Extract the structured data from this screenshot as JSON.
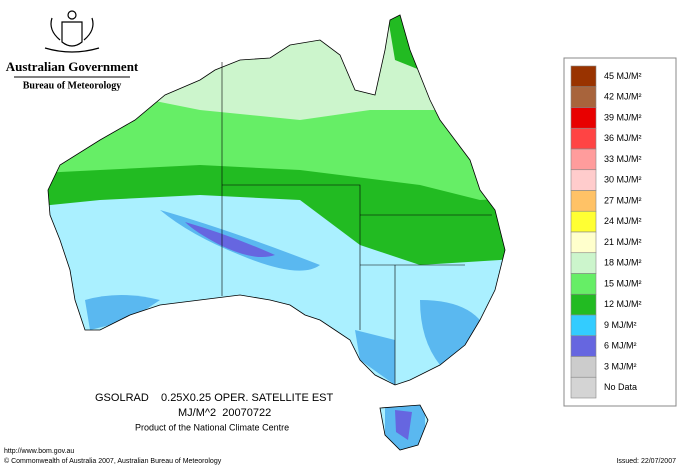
{
  "header": {
    "government": "Australian Government",
    "bureau": "Bureau of Meteorology"
  },
  "legend": [
    {
      "label": "45 MJ/M²",
      "color": "#993300"
    },
    {
      "label": "42 MJ/M²",
      "color": "#a8643c"
    },
    {
      "label": "39 MJ/M²",
      "color": "#e80000"
    },
    {
      "label": "36 MJ/M²",
      "color": "#ff4444"
    },
    {
      "label": "33 MJ/M²",
      "color": "#ff9c9c"
    },
    {
      "label": "30 MJ/M²",
      "color": "#ffcccc"
    },
    {
      "label": "27 MJ/M²",
      "color": "#ffc266"
    },
    {
      "label": "24 MJ/M²",
      "color": "#ffff33"
    },
    {
      "label": "21 MJ/M²",
      "color": "#ffffcc"
    },
    {
      "label": "18 MJ/M²",
      "color": "#ccf5cc"
    },
    {
      "label": "15 MJ/M²",
      "color": "#66ee66"
    },
    {
      "label": "12 MJ/M²",
      "color": "#22bb22"
    },
    {
      "label": "9 MJ/M²",
      "color": "#33ccff"
    },
    {
      "label": "6 MJ/M²",
      "color": "#6666e0"
    },
    {
      "label": "3 MJ/M²",
      "color": "#cccccc"
    },
    {
      "label": "No Data",
      "color": "#d4d4d4"
    }
  ],
  "caption": {
    "line1": "GSOLRAD    0.25X0.25 OPER. SATELLITE EST",
    "line2": "MJ/M^2  20070722",
    "line3": "Product of the National Climate Centre"
  },
  "footer": {
    "url": "http://www.bom.gov.au",
    "copyright": "© Commonwealth of Australia 2007, Australian Bureau of Meteorology",
    "issued": "Issued: 22/07/2007"
  }
}
